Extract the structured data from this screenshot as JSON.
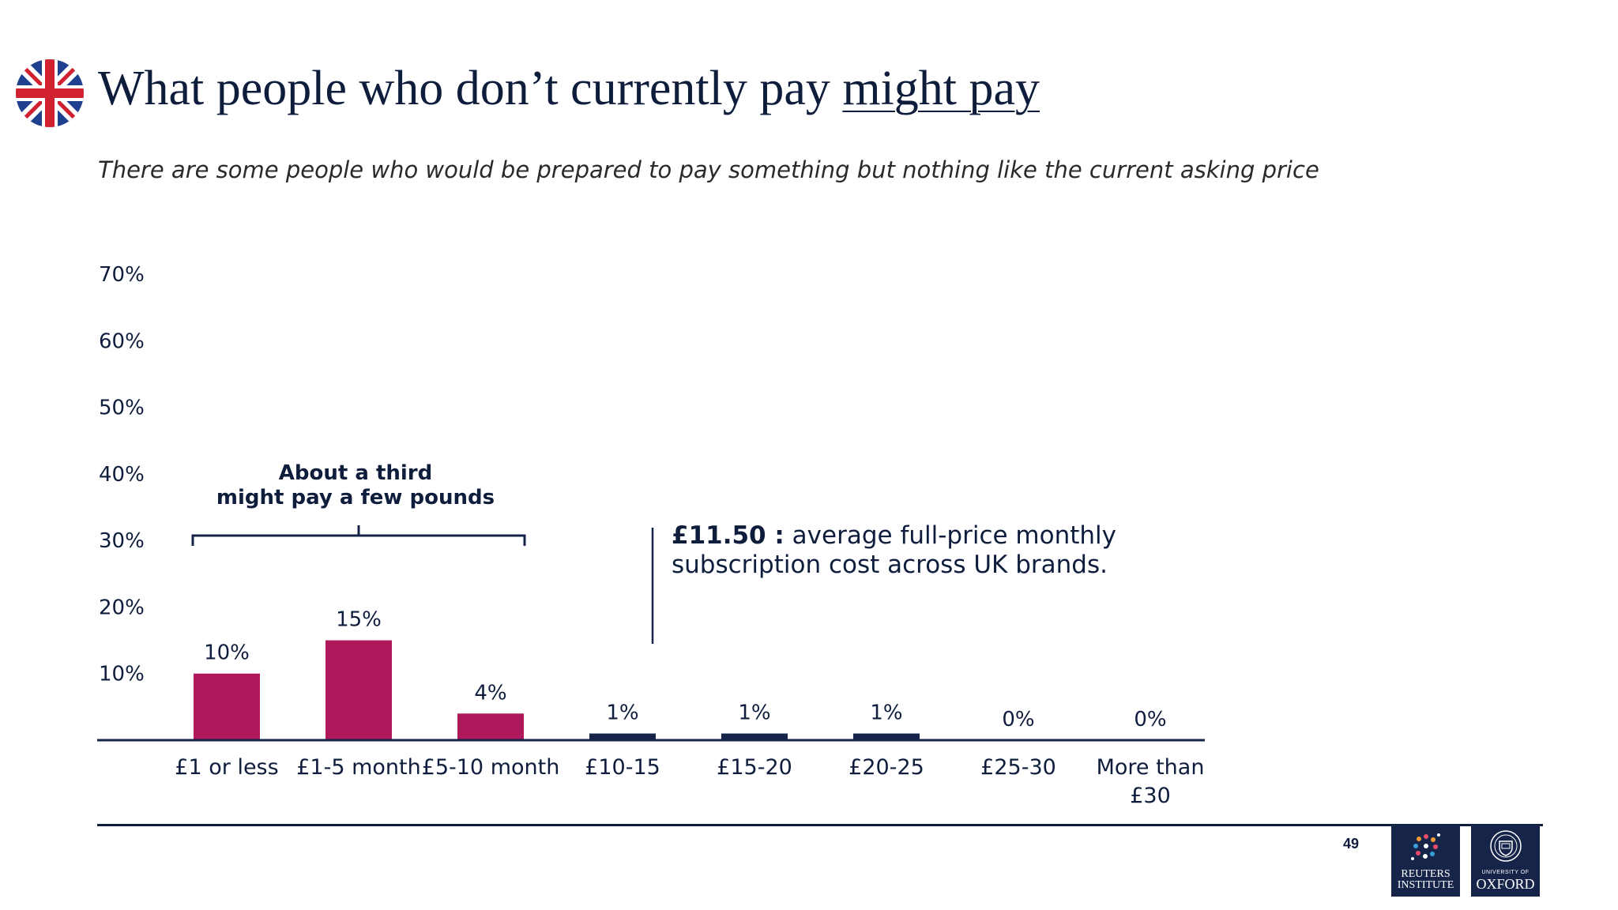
{
  "header": {
    "title_main": "What people who don’t currently pay ",
    "title_emph": "might pay",
    "subtitle": "There are some people who would be prepared to pay something but nothing like the current asking price"
  },
  "annotations": {
    "bracket_line1": "About a third",
    "bracket_line2": "might pay a few pounds",
    "callout_value": "£11.50 :",
    "callout_text_line1": " average full-price monthly",
    "callout_text_line2": "subscription cost across UK brands."
  },
  "footer": {
    "page_number": "49",
    "logo_left_line1": "REUTERS",
    "logo_left_line2": "INSTITUTE",
    "logo_right_line1": "UNIVERSITY OF",
    "logo_right_line2": "OXFORD"
  },
  "colors": {
    "highlight": "#b0185c",
    "dark": "#16244a",
    "text": "#0f1d3d"
  },
  "chart_data": {
    "type": "bar",
    "title": "What people who don’t currently pay might pay",
    "xlabel": "",
    "ylabel": "",
    "ylim": [
      0,
      70
    ],
    "yticks": [
      "10%",
      "20%",
      "30%",
      "40%",
      "50%",
      "60%",
      "70%"
    ],
    "ytick_values": [
      10,
      20,
      30,
      40,
      50,
      60,
      70
    ],
    "categories": [
      [
        "£1 or less"
      ],
      [
        "£1-5 month"
      ],
      [
        "£5-10 month"
      ],
      [
        "£10-15"
      ],
      [
        "£15-20"
      ],
      [
        "£20-25"
      ],
      [
        "£25-30"
      ],
      [
        "More than",
        "£30"
      ]
    ],
    "values": [
      10,
      15,
      4,
      1,
      1,
      1,
      0,
      0
    ],
    "value_labels": [
      "10%",
      "15%",
      "4%",
      "1%",
      "1%",
      "1%",
      "0%",
      "0%"
    ],
    "highlighted": [
      true,
      true,
      true,
      false,
      false,
      false,
      false,
      false
    ]
  }
}
